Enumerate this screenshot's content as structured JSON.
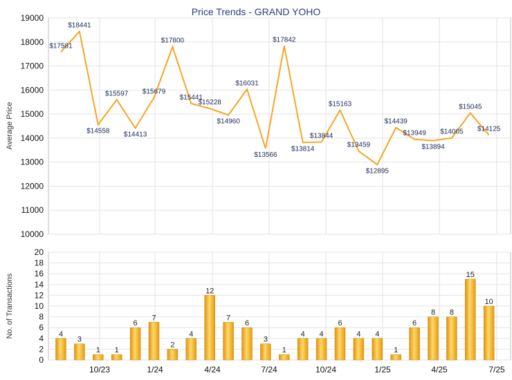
{
  "chart_data": [
    {
      "type": "line",
      "title": "Price Trends - GRAND YOHO",
      "ylabel": "Average Price",
      "ylim": [
        10000,
        19000
      ],
      "yticks": [
        10000,
        11000,
        12000,
        13000,
        14000,
        15000,
        16000,
        17000,
        18000,
        19000
      ],
      "x_tick_labels": [
        "10/23",
        "1/24",
        "4/24",
        "7/24",
        "10/24",
        "1/25",
        "4/25",
        "7/25"
      ],
      "grid": true,
      "line_color": "#f5a623",
      "series": [
        {
          "values": [
            17581,
            18441,
            14558,
            15597,
            14413,
            15679,
            17800,
            15441,
            15228,
            14960,
            16031,
            13566,
            17842,
            13814,
            13844,
            15163,
            13459,
            12895,
            14439,
            13949,
            13894,
            14005,
            15045,
            14125
          ],
          "labels": [
            "$17581",
            "$18441",
            "$14558",
            "$15597",
            "$14413",
            "$15679",
            "$17800",
            "$15441",
            "$15228",
            "$14960",
            "$16031",
            "$13566",
            "$17842",
            "$13814",
            "$13844",
            "$15163",
            "$13459",
            "$12895",
            "$14439",
            "$13949",
            "$13894",
            "$14005",
            "$15045",
            "$14125"
          ]
        }
      ]
    },
    {
      "type": "bar",
      "ylabel": "No. of Transactions",
      "ylim": [
        0,
        20
      ],
      "yticks": [
        0,
        2,
        4,
        6,
        8,
        10,
        12,
        14,
        16,
        18,
        20
      ],
      "x_tick_labels": [
        "10/23",
        "1/24",
        "4/24",
        "7/24",
        "10/24",
        "1/25",
        "4/25",
        "7/25"
      ],
      "grid": true,
      "bar_color": "#f5b21a",
      "values": [
        4,
        3,
        1,
        1,
        6,
        7,
        2,
        4,
        12,
        7,
        6,
        3,
        1,
        4,
        4,
        6,
        4,
        4,
        1,
        6,
        8,
        8,
        15,
        10
      ]
    }
  ]
}
